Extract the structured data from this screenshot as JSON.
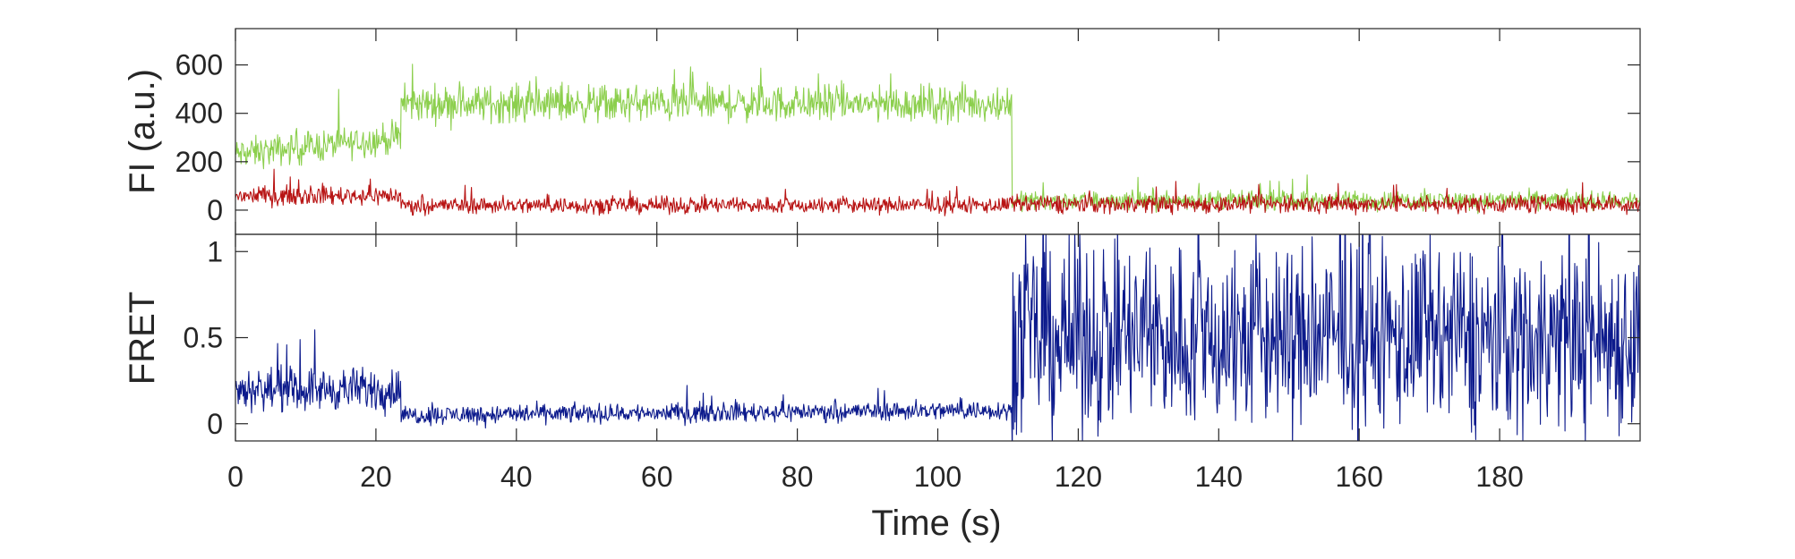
{
  "chart_data": [
    {
      "type": "line",
      "title": "",
      "xlabel": "",
      "ylabel": "FI (a.u.)",
      "xlim": [
        0,
        200
      ],
      "ylim": [
        -100,
        750
      ],
      "x_ticks": [
        0,
        20,
        40,
        60,
        80,
        100,
        120,
        140,
        160,
        180
      ],
      "y_ticks": [
        0,
        200,
        400,
        600
      ],
      "y_tick_labels": [
        "0",
        "200",
        "400",
        "600"
      ],
      "grid": false,
      "colors": {
        "donor": "#8ccf4d",
        "acceptor": "#b81414"
      },
      "segments": [
        {
          "series": "green",
          "x_range": [
            0,
            23.5
          ],
          "level_start": 230,
          "level_end": 300,
          "noise": 95
        },
        {
          "series": "green",
          "x_range": [
            23.5,
            110.5
          ],
          "level_start": 440,
          "level_end": 440,
          "noise": 110
        },
        {
          "series": "green",
          "x_range": [
            110.5,
            200
          ],
          "level_start": 40,
          "level_end": 40,
          "noise": 55
        },
        {
          "series": "red",
          "x_range": [
            0,
            23.5
          ],
          "level_start": 60,
          "level_end": 60,
          "noise": 55
        },
        {
          "series": "red",
          "x_range": [
            23.5,
            110.5
          ],
          "level_start": 20,
          "level_end": 20,
          "noise": 50
        },
        {
          "series": "red",
          "x_range": [
            110.5,
            200
          ],
          "level_start": 25,
          "level_end": 25,
          "noise": 55
        }
      ]
    },
    {
      "type": "line",
      "title": "",
      "xlabel": "Time (s)",
      "ylabel": "FRET",
      "xlim": [
        0,
        200
      ],
      "ylim": [
        -0.1,
        1.1
      ],
      "x_ticks": [
        0,
        20,
        40,
        60,
        80,
        100,
        120,
        140,
        160,
        180
      ],
      "x_tick_labels": [
        "0",
        "20",
        "40",
        "60",
        "80",
        "100",
        "120",
        "140",
        "160",
        "180"
      ],
      "y_ticks": [
        0,
        0.5,
        1
      ],
      "y_tick_labels": [
        "0",
        "0.5",
        "1"
      ],
      "grid": false,
      "colors": {
        "fret": "#0c1a8c"
      },
      "segments": [
        {
          "series": "fret",
          "x_range": [
            0,
            23.5
          ],
          "level_start": 0.2,
          "level_end": 0.2,
          "noise": 0.18
        },
        {
          "series": "fret",
          "x_range": [
            23.5,
            110.5
          ],
          "level_start": 0.05,
          "level_end": 0.08,
          "noise": 0.08
        },
        {
          "series": "fret",
          "x_range": [
            110.5,
            200
          ],
          "level_start": 0.5,
          "level_end": 0.5,
          "noise": 0.8
        }
      ]
    }
  ]
}
